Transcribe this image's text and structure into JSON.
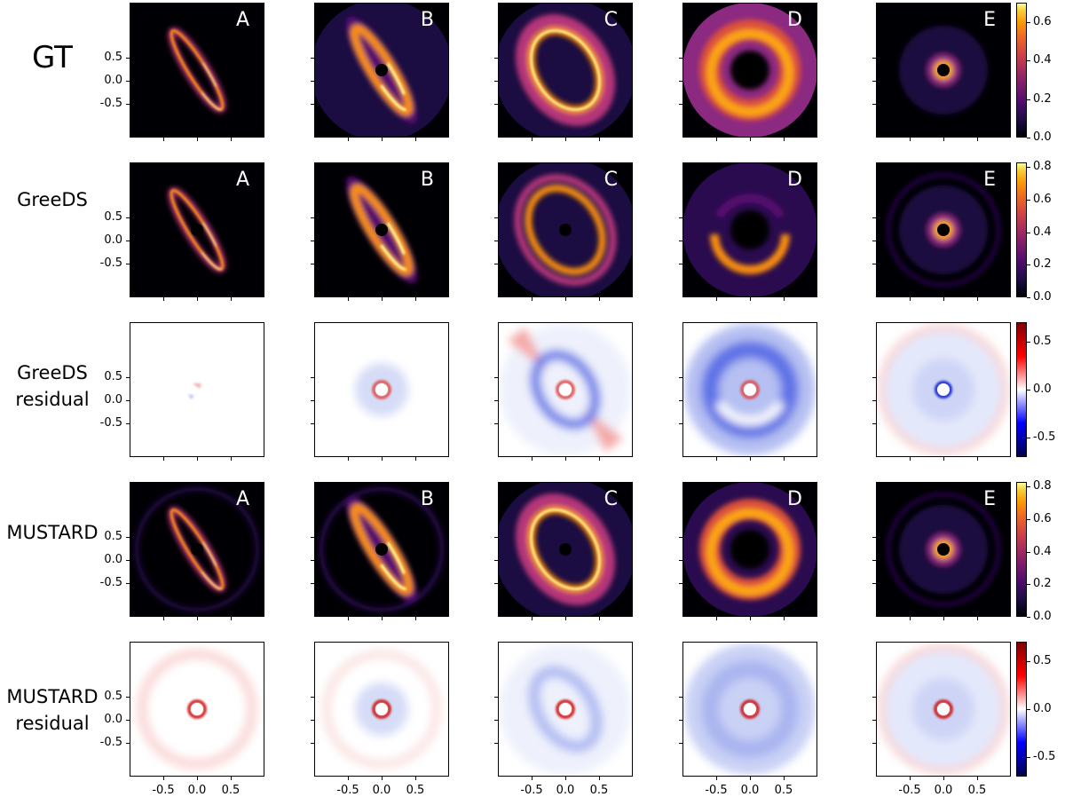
{
  "rows": [
    {
      "label": "GT",
      "lines": [
        "GT"
      ],
      "kind": "image",
      "letters": true,
      "colorbar": {
        "ticks": [
          "0.6",
          "0.4",
          "0.2",
          "0.0"
        ],
        "max": 0.7
      }
    },
    {
      "label": "GreeDS",
      "lines": [
        "GreeDS"
      ],
      "kind": "image",
      "letters": true,
      "colorbar": {
        "ticks": [
          "0.8",
          "0.6",
          "0.4",
          "0.2",
          "0.0"
        ],
        "max": 0.83
      }
    },
    {
      "label": "GreeDS residual",
      "lines": [
        "GreeDS",
        "residual"
      ],
      "kind": "residual",
      "letters": false,
      "colorbar": {
        "ticks": [
          "0.5",
          "0.0",
          "-0.5"
        ],
        "min": -0.7,
        "max": 0.7
      }
    },
    {
      "label": "MUSTARD",
      "lines": [
        "MUSTARD"
      ],
      "kind": "image",
      "letters": true,
      "colorbar": {
        "ticks": [
          "0.8",
          "0.6",
          "0.4",
          "0.2",
          "0.0"
        ],
        "max": 0.83
      }
    },
    {
      "label": "MUSTARD residual",
      "lines": [
        "MUSTARD",
        "residual"
      ],
      "kind": "residual",
      "letters": false,
      "colorbar": {
        "ticks": [
          "0.5",
          "0.0",
          "-0.5"
        ],
        "min": -0.7,
        "max": 0.7
      }
    }
  ],
  "columns": [
    "A",
    "B",
    "C",
    "D",
    "E"
  ],
  "y_ticks": [
    "0.5",
    "0.0",
    "-0.5"
  ],
  "x_ticks": [
    "-0.5",
    "0.0",
    "0.5"
  ],
  "colormaps": {
    "image": "inferno",
    "residual": "seismic"
  },
  "colors": {
    "image_low": "#000004",
    "image_mid": "#b53679",
    "image_high": "#fcffa4",
    "residual_neg": "#00004c",
    "residual_zero": "#ffffff",
    "residual_pos": "#7f0000"
  }
}
